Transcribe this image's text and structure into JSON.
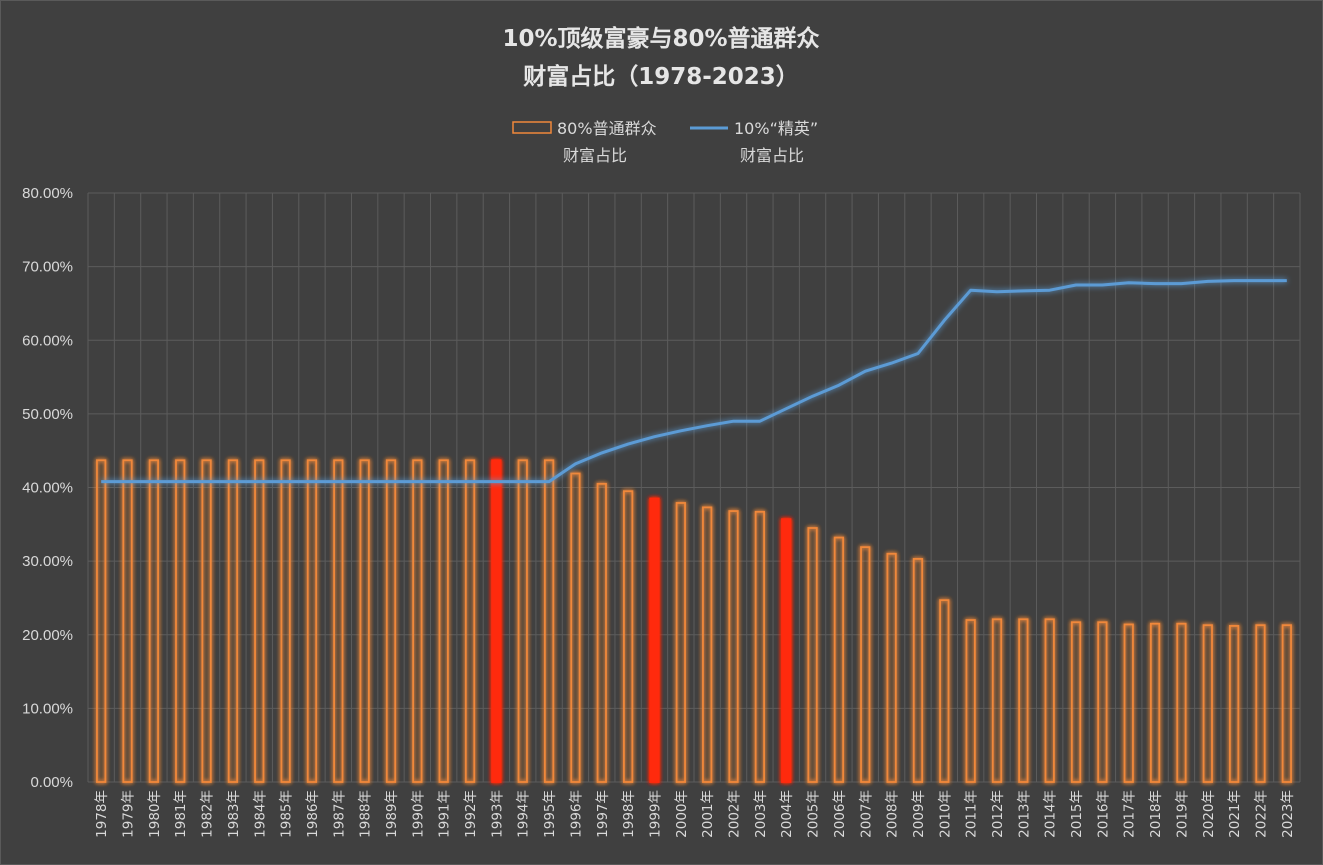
{
  "chart_data": {
    "type": "bar",
    "title": "10%顶级富豪与80%普通群众",
    "subtitle": "财富占比（1978-2023）",
    "legend": {
      "placement": "top",
      "items": [
        {
          "line1": "80%普通群众",
          "line2": "财富占比",
          "kind": "bar-outline"
        },
        {
          "line1": "10%“精英”",
          "line2": "财富占比",
          "kind": "line"
        }
      ]
    },
    "ylim": [
      0,
      80
    ],
    "yticks": [
      "0.00%",
      "10.00%",
      "20.00%",
      "30.00%",
      "40.00%",
      "50.00%",
      "60.00%",
      "70.00%",
      "80.00%"
    ],
    "categories": [
      "1978年",
      "1979年",
      "1980年",
      "1981年",
      "1982年",
      "1983年",
      "1984年",
      "1985年",
      "1986年",
      "1987年",
      "1988年",
      "1989年",
      "1990年",
      "1991年",
      "1992年",
      "1993年",
      "1994年",
      "1995年",
      "1996年",
      "1997年",
      "1998年",
      "1999年",
      "2000年",
      "2001年",
      "2002年",
      "2003年",
      "2004年",
      "2005年",
      "2006年",
      "2007年",
      "2008年",
      "2009年",
      "2010年",
      "2011年",
      "2012年",
      "2013年",
      "2014年",
      "2015年",
      "2016年",
      "2017年",
      "2018年",
      "2019年",
      "2020年",
      "2021年",
      "2022年",
      "2023年"
    ],
    "series": [
      {
        "name": "80%普通群众财富占比",
        "kind": "bar",
        "color": "#f0883a",
        "highlight_color": "#ff2a10",
        "highlight_categories": [
          "1993年",
          "1999年",
          "2004年"
        ],
        "values": [
          43.7,
          43.7,
          43.7,
          43.7,
          43.7,
          43.7,
          43.7,
          43.7,
          43.7,
          43.7,
          43.7,
          43.7,
          43.7,
          43.7,
          43.7,
          43.7,
          43.7,
          43.7,
          41.9,
          40.5,
          39.5,
          38.5,
          37.9,
          37.3,
          36.8,
          36.7,
          35.7,
          34.5,
          33.2,
          31.9,
          31.0,
          30.3,
          24.7,
          22.0,
          22.1,
          22.1,
          22.1,
          21.7,
          21.7,
          21.4,
          21.5,
          21.5,
          21.3,
          21.2,
          21.3,
          21.3
        ]
      },
      {
        "name": "10%“精英”财富占比",
        "kind": "line",
        "color": "#5b9bd5",
        "values": [
          40.8,
          40.8,
          40.8,
          40.8,
          40.8,
          40.8,
          40.8,
          40.8,
          40.8,
          40.8,
          40.8,
          40.8,
          40.8,
          40.8,
          40.8,
          40.8,
          40.8,
          40.8,
          43.2,
          44.7,
          45.9,
          46.9,
          47.7,
          48.4,
          49.0,
          49.0,
          50.7,
          52.4,
          53.9,
          55.8,
          56.9,
          58.2,
          62.7,
          66.8,
          66.6,
          66.7,
          66.8,
          67.5,
          67.5,
          67.8,
          67.7,
          67.7,
          68.0,
          68.1,
          68.1,
          68.1
        ]
      }
    ],
    "grid": true
  }
}
